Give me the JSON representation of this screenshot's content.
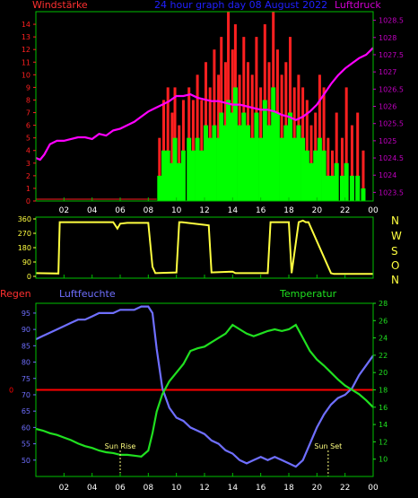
{
  "header": {
    "left_label": "Windstärke",
    "center_label": "24 hour graph day  08 August 2022",
    "right_label": "Luftdruck"
  },
  "middle": {
    "compass_labels": [
      "N",
      "W",
      "S",
      "O",
      "N"
    ]
  },
  "bottom_header": {
    "regen_label": "Regen",
    "luftfeuchte_label": "Luftfeuchte",
    "temperatur_label": "Temperatur"
  },
  "colors": {
    "background": "#000000",
    "axis_frame": "#00c000",
    "wind_left_axis": "#ff2020",
    "pressure_right_axis": "#c000c0",
    "wind_gust": "#ff2020",
    "wind_avg": "#00ff00",
    "pressure_line": "#ff00ff",
    "direction_line": "#ffff40",
    "rain_line": "#ff0000",
    "humidity_line": "#6f6fff",
    "temperature_line": "#20e020",
    "humidity_axis": "#6f6fff",
    "temperature_axis": "#20e020",
    "x_ticks": "#ffffff",
    "annotation": "#ffff80",
    "compass": "#ffff40",
    "regen_label": "#ff3030",
    "luftfeuchte_label": "#6f6fff",
    "temperatur_label": "#20e020",
    "windstarke_label": "#ff3030",
    "luftdruck_label": "#d000d0",
    "title": "#2020ff"
  },
  "chart_data": [
    {
      "id": "wind_pressure",
      "type": "line",
      "x_ticks": [
        "02",
        "04",
        "06",
        "08",
        "10",
        "12",
        "14",
        "16",
        "18",
        "20",
        "22",
        "00"
      ],
      "xlim": [
        0,
        24
      ],
      "left_axis": {
        "label": "Windstärke",
        "ylim": [
          0,
          15
        ],
        "ticks": [
          "0",
          "1",
          "2",
          "3",
          "4",
          "5",
          "6",
          "7",
          "8",
          "9",
          "10",
          "11",
          "12",
          "13",
          "14"
        ]
      },
      "right_axis": {
        "label": "Luftdruck",
        "ylim": [
          1023.25,
          1028.75
        ],
        "ticks": [
          "1023.5",
          "1024",
          "1024.5",
          "1025",
          "1025.5",
          "1026",
          "1026.5",
          "1027",
          "1027.5",
          "1028",
          "1028.5"
        ]
      },
      "series": [
        {
          "key": "pressure",
          "axis": "right",
          "x": [
            0,
            0.3,
            0.6,
            1,
            1.5,
            2,
            2.5,
            3,
            3.5,
            4,
            4.5,
            5,
            5.5,
            6,
            6.5,
            7,
            7.5,
            8,
            8.5,
            9,
            9.5,
            10,
            10.5,
            11,
            11.5,
            12,
            12.5,
            13,
            13.5,
            14,
            14.5,
            15,
            15.5,
            16,
            16.5,
            17,
            17.5,
            18,
            18.5,
            19,
            19.5,
            20,
            20.5,
            21,
            21.5,
            22,
            22.5,
            23,
            23.5,
            24
          ],
          "values": [
            1024.5,
            1024.45,
            1024.6,
            1024.9,
            1025.0,
            1025.0,
            1025.05,
            1025.1,
            1025.1,
            1025.05,
            1025.2,
            1025.15,
            1025.3,
            1025.35,
            1025.45,
            1025.55,
            1025.7,
            1025.85,
            1025.95,
            1026.05,
            1026.15,
            1026.3,
            1026.3,
            1026.35,
            1026.25,
            1026.2,
            1026.15,
            1026.15,
            1026.1,
            1026.05,
            1026.05,
            1026.0,
            1025.95,
            1025.9,
            1025.9,
            1025.85,
            1025.75,
            1025.7,
            1025.6,
            1025.7,
            1025.85,
            1026.05,
            1026.35,
            1026.65,
            1026.9,
            1027.1,
            1027.25,
            1027.4,
            1027.5,
            1027.7
          ]
        },
        {
          "key": "wind_gust",
          "axis": "left",
          "style": "bars",
          "x": [
            8.7,
            9.0,
            9.3,
            9.6,
            9.8,
            10.1,
            10.4,
            10.8,
            11.1,
            11.4,
            11.7,
            12.0,
            12.3,
            12.6,
            12.9,
            13.1,
            13.4,
            13.6,
            13.9,
            14.1,
            14.4,
            14.7,
            15.0,
            15.3,
            15.6,
            15.9,
            16.2,
            16.5,
            16.8,
            17.1,
            17.4,
            17.7,
            18.0,
            18.3,
            18.6,
            18.9,
            19.2,
            19.5,
            19.8,
            20.1,
            20.4,
            20.7,
            21.0,
            21.3,
            21.7,
            22.0,
            22.4,
            22.8,
            23.2
          ],
          "values": [
            5,
            8,
            9,
            7,
            9,
            6,
            8,
            9,
            8,
            10,
            8,
            11,
            9,
            12,
            10,
            13,
            11,
            15,
            12,
            14,
            10,
            13,
            11,
            10,
            13,
            9,
            14,
            11,
            15,
            12,
            10,
            11,
            13,
            9,
            10,
            9,
            8,
            6,
            7,
            10,
            9,
            5,
            4,
            7,
            5,
            9,
            6,
            7,
            4
          ]
        },
        {
          "key": "wind_avg",
          "axis": "left",
          "style": "bars",
          "x": [
            8.7,
            9.0,
            9.3,
            9.6,
            9.8,
            10.1,
            10.4,
            10.8,
            11.1,
            11.4,
            11.7,
            12.0,
            12.3,
            12.6,
            12.9,
            13.1,
            13.4,
            13.6,
            13.9,
            14.1,
            14.4,
            14.7,
            15.0,
            15.3,
            15.6,
            15.9,
            16.2,
            16.5,
            16.8,
            17.1,
            17.4,
            17.7,
            18.0,
            18.3,
            18.6,
            18.9,
            19.2,
            19.5,
            19.8,
            20.1,
            20.4,
            20.7,
            21.0,
            21.3,
            21.7,
            22.0,
            22.4,
            22.8,
            23.2
          ],
          "values": [
            2,
            4,
            4,
            3,
            5,
            3,
            4,
            5,
            4,
            5,
            4,
            6,
            5,
            6,
            5,
            7,
            6,
            8,
            7,
            9,
            6,
            7,
            6,
            5,
            7,
            5,
            8,
            6,
            9,
            7,
            5,
            6,
            7,
            5,
            6,
            5,
            4,
            3,
            4,
            5,
            4,
            2,
            2,
            3,
            2,
            3,
            2,
            2,
            1
          ]
        }
      ]
    },
    {
      "id": "direction",
      "type": "line",
      "x_ticks": [
        "02",
        "04",
        "06",
        "08",
        "10",
        "12",
        "14",
        "16",
        "18",
        "20",
        "22",
        "00"
      ],
      "xlim": [
        0,
        24
      ],
      "ylim": [
        0,
        360
      ],
      "y_ticks": [
        "0",
        "90",
        "180",
        "270",
        "360"
      ],
      "series": [
        {
          "key": "direction",
          "x": [
            0,
            1.6,
            1.7,
            5.5,
            5.8,
            6.0,
            6.5,
            8.0,
            8.3,
            8.5,
            10.0,
            10.2,
            10.4,
            12.3,
            12.5,
            14.0,
            14.2,
            16.5,
            16.7,
            18.0,
            18.2,
            18.7,
            19.0,
            19.2,
            19.4,
            21.0,
            21.2,
            24
          ],
          "values": [
            20,
            18,
            340,
            340,
            300,
            330,
            335,
            335,
            60,
            20,
            25,
            340,
            340,
            320,
            25,
            30,
            20,
            20,
            340,
            340,
            20,
            340,
            350,
            340,
            340,
            20,
            15,
            15
          ]
        }
      ]
    },
    {
      "id": "humidity_temperature",
      "type": "line",
      "x_ticks": [
        "02",
        "04",
        "06",
        "08",
        "10",
        "12",
        "14",
        "16",
        "18",
        "20",
        "22",
        "00"
      ],
      "xlim": [
        0,
        24
      ],
      "left_axis": {
        "label": "Luftfeuchte",
        "ylim": [
          45,
          98
        ],
        "ticks": [
          "50",
          "55",
          "60",
          "65",
          "70",
          "75",
          "80",
          "85",
          "90",
          "95"
        ]
      },
      "right_axis": {
        "label": "Temperatur",
        "ylim": [
          8,
          28
        ],
        "ticks": [
          "10",
          "12",
          "14",
          "16",
          "18",
          "20",
          "22",
          "24",
          "26",
          "28"
        ]
      },
      "rain_axis": {
        "ticks": [
          "0"
        ],
        "value": 0
      },
      "annotations": [
        {
          "text": "Sun Rise",
          "x": 6.0
        },
        {
          "text": "Sun Set",
          "x": 20.8
        }
      ],
      "series": [
        {
          "key": "humidity",
          "axis": "left",
          "x": [
            0,
            0.5,
            1,
            1.5,
            2,
            2.5,
            3,
            3.5,
            4,
            4.5,
            5,
            5.5,
            6,
            6.5,
            7,
            7.5,
            8,
            8.3,
            8.6,
            9,
            9.5,
            10,
            10.5,
            11,
            11.5,
            12,
            12.5,
            13,
            13.5,
            14,
            14.5,
            15,
            15.5,
            16,
            16.5,
            17,
            17.5,
            18,
            18.5,
            19,
            19.5,
            20,
            20.5,
            21,
            21.5,
            22,
            22.5,
            23,
            23.5,
            24
          ],
          "values": [
            87,
            88,
            89,
            90,
            91,
            92,
            93,
            93,
            94,
            95,
            95,
            95,
            96,
            96,
            96,
            97,
            97,
            95,
            84,
            72,
            66,
            63,
            62,
            60,
            59,
            58,
            56,
            55,
            53,
            52,
            50,
            49,
            50,
            51,
            50,
            51,
            50,
            49,
            48,
            50,
            55,
            60,
            64,
            67,
            69,
            70,
            72,
            76,
            79,
            82
          ]
        },
        {
          "key": "temperature",
          "axis": "right",
          "x": [
            0,
            0.5,
            1,
            1.5,
            2,
            2.5,
            3,
            3.5,
            4,
            4.5,
            5,
            5.5,
            6,
            6.5,
            7,
            7.5,
            8,
            8.3,
            8.6,
            9,
            9.5,
            10,
            10.5,
            11,
            11.5,
            12,
            12.5,
            13,
            13.5,
            14,
            14.5,
            15,
            15.5,
            16,
            16.5,
            17,
            17.5,
            18,
            18.5,
            19,
            19.5,
            20,
            20.5,
            21,
            21.5,
            22,
            22.5,
            23,
            23.5,
            24
          ],
          "values": [
            13.5,
            13.3,
            13.0,
            12.8,
            12.5,
            12.2,
            11.8,
            11.5,
            11.3,
            11.0,
            10.8,
            10.7,
            10.5,
            10.5,
            10.4,
            10.3,
            11.0,
            13.0,
            15.5,
            17.5,
            19.0,
            20.0,
            21.0,
            22.5,
            22.8,
            23.0,
            23.5,
            24.0,
            24.5,
            25.5,
            25.0,
            24.5,
            24.2,
            24.5,
            24.8,
            25.0,
            24.8,
            25.0,
            25.5,
            24.0,
            22.5,
            21.5,
            20.8,
            20.0,
            19.2,
            18.5,
            18.0,
            17.5,
            16.8,
            16.0
          ]
        }
      ]
    }
  ]
}
